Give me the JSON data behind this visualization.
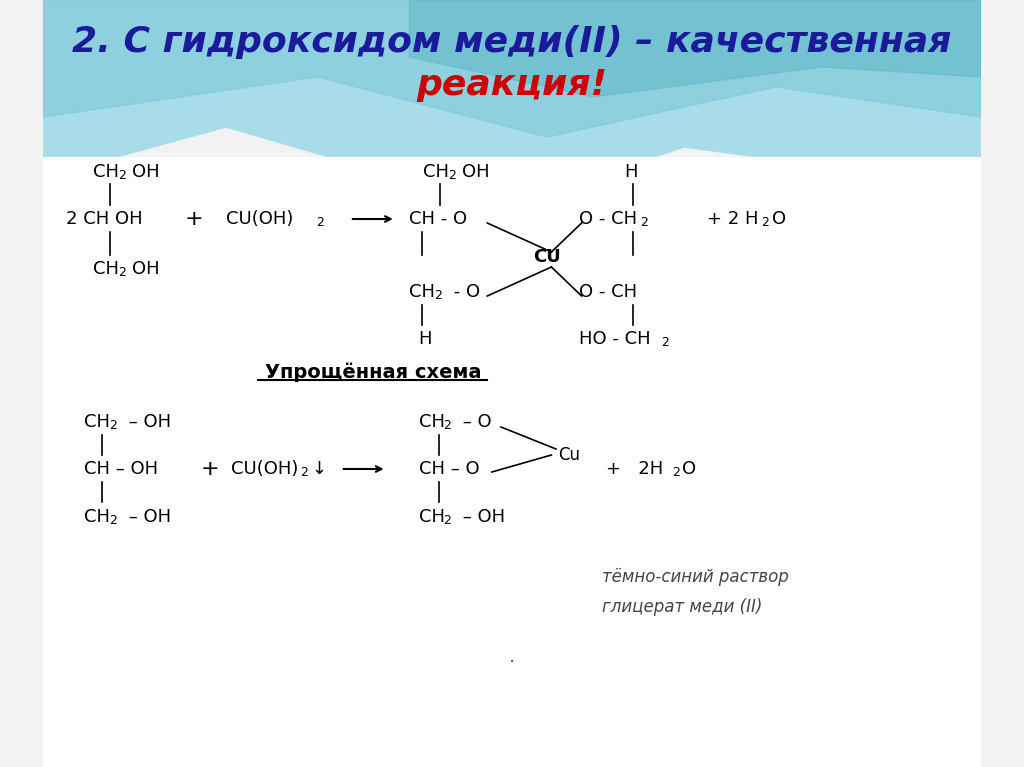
{
  "title_line1": "2. С гидроксидом меди(II) – качественная",
  "title_line2": "реакция!",
  "title_color_blue": "#1a1a9a",
  "title_color_red": "#cc0000",
  "title_fontsize": 26,
  "section_label": "Упрощённая схема",
  "italic_note_line1": "тёмно-синий раствор",
  "italic_note_line2": "глицерат меди (II)",
  "bg_color1": "#a8dce8",
  "bg_color2": "#7ec8d8",
  "bg_color3": "#5ab5c8"
}
